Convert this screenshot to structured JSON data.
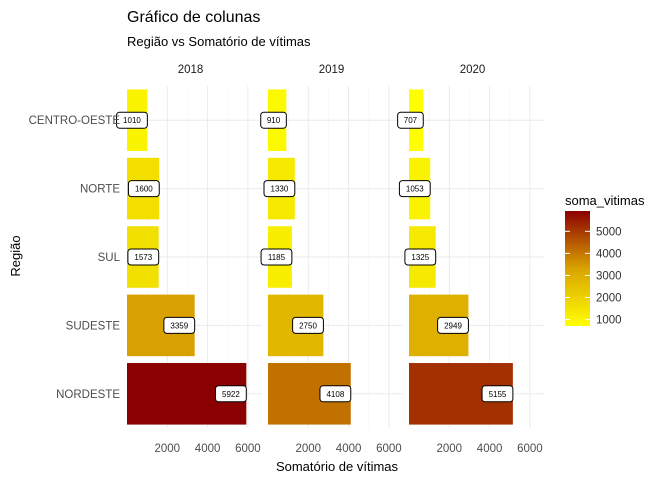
{
  "chart_data": {
    "type": "bar",
    "orientation": "horizontal",
    "title": "Gráfico de colunas",
    "subtitle": "Região vs Somatório de vítimas",
    "xlabel": "Somatório de vítimas",
    "ylabel": "Região",
    "xlim": [
      0,
      6700
    ],
    "x_ticks": [
      2000,
      4000,
      6000
    ],
    "grid": true,
    "categories": [
      "CENTRO-OESTE",
      "NORTE",
      "SUL",
      "SUDESTE",
      "NORDESTE"
    ],
    "facets": [
      {
        "label": "2018",
        "values": [
          1010,
          1600,
          1573,
          3359,
          5922
        ]
      },
      {
        "label": "2019",
        "values": [
          910,
          1330,
          1185,
          2750,
          4108
        ]
      },
      {
        "label": "2020",
        "values": [
          707,
          1053,
          1325,
          2949,
          5155
        ]
      }
    ],
    "legend": {
      "title": "soma_vitimas",
      "placement": "right",
      "ticks": [
        1000,
        2000,
        3000,
        4000,
        5000
      ],
      "min": 707,
      "max": 5922,
      "colors": [
        "#ffff00",
        "#d9a300",
        "#8b0000"
      ]
    }
  }
}
